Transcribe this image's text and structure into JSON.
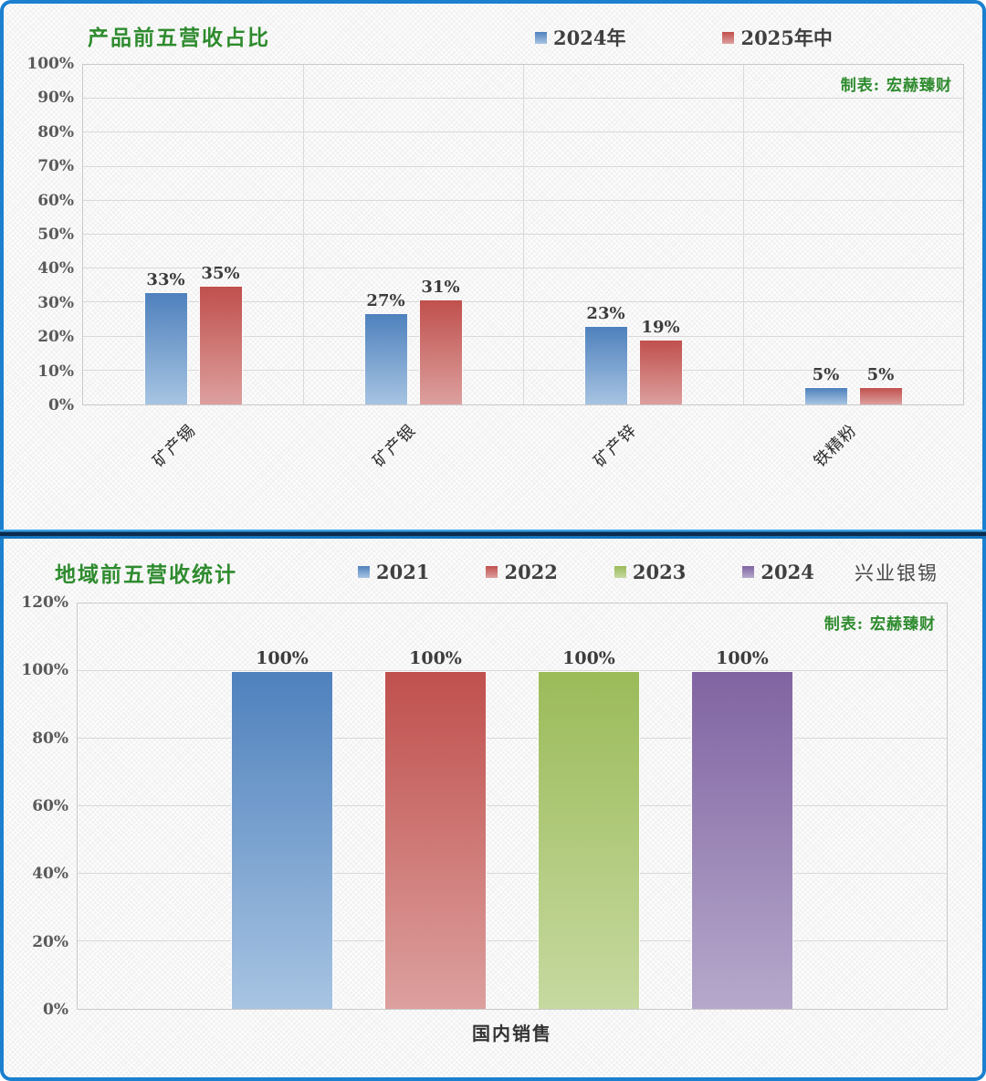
{
  "frame": {
    "border_color": "#1b80cf",
    "divider_dark": "#0c2b4d"
  },
  "credit": "制表: 宏赫臻财",
  "credit_color": "#2e8b2e",
  "company": "兴业银锡",
  "chart_data": [
    {
      "type": "bar",
      "title": "产品前五营收占比",
      "title_color": "#2e8b2e",
      "categories": [
        "矿产锡",
        "矿产银",
        "矿产锌",
        "铁精粉"
      ],
      "series": [
        {
          "name": "2024年",
          "color_top": "#4f81bd",
          "color_bottom": "#a7c4e2",
          "values": [
            33,
            27,
            23,
            5
          ]
        },
        {
          "name": "2025年中",
          "color_top": "#c0504d",
          "color_bottom": "#dca09e",
          "values": [
            35,
            31,
            19,
            5
          ]
        }
      ],
      "value_suffix": "%",
      "ylim": [
        0,
        100
      ],
      "ytick_step": 10,
      "yticks": [
        "100%",
        "90%",
        "80%",
        "70%",
        "60%",
        "50%",
        "40%",
        "30%",
        "20%",
        "10%",
        "0%"
      ],
      "grid": true,
      "legend_position": "top",
      "category_separators": true
    },
    {
      "type": "bar",
      "title": "地域前五营收统计",
      "title_color": "#2e8b2e",
      "categories": [
        "国内销售"
      ],
      "series": [
        {
          "name": "2021",
          "color_top": "#4f81bd",
          "color_bottom": "#a7c4e2",
          "values": [
            100
          ]
        },
        {
          "name": "2022",
          "color_top": "#c0504d",
          "color_bottom": "#dca09e",
          "values": [
            100
          ]
        },
        {
          "name": "2023",
          "color_top": "#9bbb59",
          "color_bottom": "#c6d9a0",
          "values": [
            100
          ]
        },
        {
          "name": "2024",
          "color_top": "#8064a2",
          "color_bottom": "#b6a8cb",
          "values": [
            100
          ]
        }
      ],
      "value_suffix": "%",
      "ylim": [
        0,
        120
      ],
      "ytick_step": 20,
      "yticks": [
        "120%",
        "100%",
        "80%",
        "60%",
        "40%",
        "20%",
        "0%"
      ],
      "grid": true,
      "legend_position": "top",
      "category_separators": false
    }
  ]
}
